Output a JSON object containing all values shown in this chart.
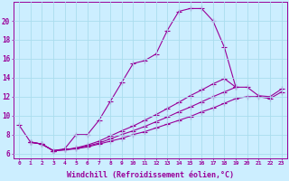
{
  "background_color": "#cceeff",
  "grid_color": "#aaddee",
  "line_color": "#990099",
  "xlabel": "Windchill (Refroidissement éolien,°C)",
  "xlabel_fontsize": 6.0,
  "xtick_labels": [
    "0",
    "1",
    "2",
    "3",
    "4",
    "5",
    "6",
    "7",
    "8",
    "9",
    "10",
    "11",
    "12",
    "13",
    "14",
    "15",
    "16",
    "17",
    "18",
    "19",
    "20",
    "21",
    "22",
    "23"
  ],
  "ytick_values": [
    6,
    8,
    10,
    12,
    14,
    16,
    18,
    20
  ],
  "ylim": [
    5.5,
    22.0
  ],
  "xlim": [
    -0.5,
    23.5
  ],
  "curve1_x": [
    0,
    1,
    2,
    3,
    4,
    5,
    6,
    7,
    8,
    9,
    10,
    11,
    12,
    13,
    14,
    15,
    16,
    17,
    18,
    19
  ],
  "curve1_y": [
    9.0,
    7.2,
    7.0,
    6.3,
    6.5,
    8.0,
    8.0,
    9.5,
    11.5,
    13.5,
    15.5,
    15.8,
    16.5,
    19.0,
    21.0,
    21.3,
    21.3,
    20.0,
    17.2,
    13.0
  ],
  "curve2_x": [
    1,
    2,
    3,
    4,
    5,
    6,
    7,
    8,
    9,
    10,
    11,
    12,
    13,
    14,
    15,
    16,
    17,
    18,
    19,
    20,
    21,
    22,
    23
  ],
  "curve2_y": [
    7.2,
    7.0,
    6.3,
    6.4,
    6.5,
    6.7,
    7.0,
    7.3,
    7.6,
    8.0,
    8.3,
    8.7,
    9.1,
    9.5,
    9.9,
    10.4,
    10.8,
    11.3,
    11.8,
    12.0,
    12.0,
    11.8,
    12.5
  ],
  "curve3_x": [
    1,
    2,
    3,
    4,
    5,
    6,
    7,
    8,
    9,
    10,
    11,
    12,
    13,
    14,
    15,
    16,
    17,
    18,
    19,
    20,
    21,
    22,
    23
  ],
  "curve3_y": [
    7.2,
    7.0,
    6.3,
    6.4,
    6.55,
    6.8,
    7.1,
    7.55,
    8.0,
    8.4,
    8.85,
    9.35,
    9.85,
    10.4,
    10.9,
    11.45,
    12.0,
    12.5,
    13.0,
    13.0,
    12.1,
    12.0,
    12.8
  ],
  "curve4_x": [
    1,
    2,
    3,
    4,
    5,
    6,
    7,
    8,
    9,
    10,
    11,
    12,
    13,
    14,
    15,
    16,
    17,
    18,
    19
  ],
  "curve4_y": [
    7.2,
    7.0,
    6.3,
    6.4,
    6.6,
    6.9,
    7.3,
    7.85,
    8.4,
    8.9,
    9.5,
    10.1,
    10.75,
    11.4,
    12.1,
    12.7,
    13.35,
    13.9,
    13.0
  ],
  "marker": "+",
  "markersize": 4.0,
  "linewidth": 0.8
}
